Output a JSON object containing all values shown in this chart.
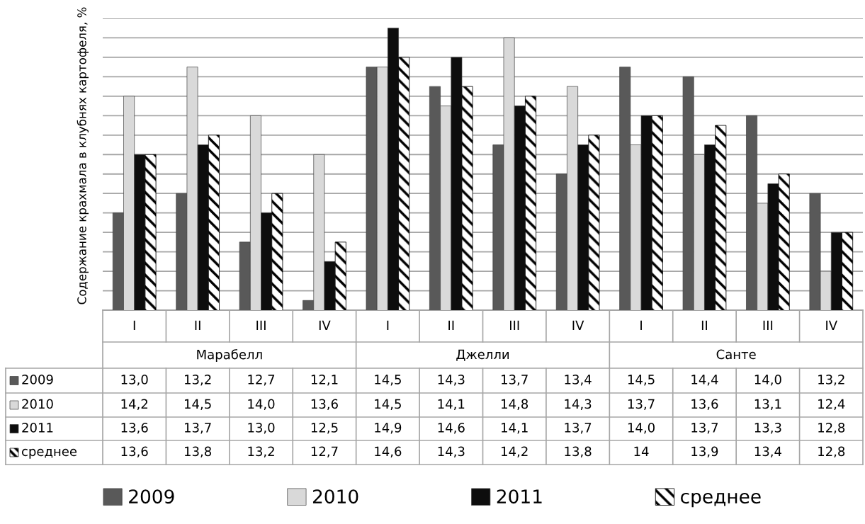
{
  "chart_data": {
    "type": "bar",
    "ylabel": "Содержание крахмала в клубнях картофеля, %",
    "categories": [
      "I",
      "II",
      "III",
      "IV",
      "I",
      "II",
      "III",
      "IV",
      "I",
      "II",
      "III",
      "IV"
    ],
    "annotations": [
      "Марабелл",
      "Джелли",
      "Санте"
    ],
    "series": [
      {
        "name": "2009",
        "color": "#595959",
        "values": [
          13.0,
          13.2,
          12.7,
          12.1,
          14.5,
          14.3,
          13.7,
          13.4,
          14.5,
          14.4,
          14.0,
          13.2
        ],
        "value_labels": [
          "13,0",
          "13,2",
          "12,7",
          "12,1",
          "14,5",
          "14,3",
          "13,7",
          "13,4",
          "14,5",
          "14,4",
          "14,0",
          "13,2"
        ]
      },
      {
        "name": "2010",
        "color": "#d9d9d9",
        "values": [
          14.2,
          14.5,
          14.0,
          13.6,
          14.5,
          14.1,
          14.8,
          14.3,
          13.7,
          13.6,
          13.1,
          12.4
        ],
        "value_labels": [
          "14,2",
          "14,5",
          "14,0",
          "13,6",
          "14,5",
          "14,1",
          "14,8",
          "14,3",
          "13,7",
          "13,6",
          "13,1",
          "12,4"
        ]
      },
      {
        "name": "2011",
        "color": "#0d0d0d",
        "values": [
          13.6,
          13.7,
          13.0,
          12.5,
          14.9,
          14.6,
          14.1,
          13.7,
          14.0,
          13.7,
          13.3,
          12.8
        ],
        "value_labels": [
          "13,6",
          "13,7",
          "13,0",
          "12,5",
          "14,9",
          "14,6",
          "14,1",
          "13,7",
          "14,0",
          "13,7",
          "13,3",
          "12,8"
        ]
      },
      {
        "name": "среднее",
        "color": "#000000",
        "values": [
          13.6,
          13.8,
          13.2,
          12.7,
          14.6,
          14.3,
          14.2,
          13.8,
          14.0,
          13.9,
          13.4,
          12.8
        ],
        "value_labels": [
          "13,6",
          "13,8",
          "13,2",
          "12,7",
          "14,6",
          "14,3",
          "14,2",
          "13,8",
          "14",
          "13,9",
          "13,4",
          "12,8"
        ]
      }
    ],
    "ylim": [
      12.0,
      15.0
    ],
    "yticks": [
      {
        "value": 12.0,
        "label": null
      },
      {
        "value": 12.2,
        "label": null
      },
      {
        "value": 12.4,
        "label": null
      },
      {
        "value": 12.6,
        "label": null
      },
      {
        "value": 12.8,
        "label": null
      },
      {
        "value": 13.0,
        "label": null
      },
      {
        "value": 13.2,
        "label": null
      },
      {
        "value": 13.4,
        "label": null
      },
      {
        "value": 13.6,
        "label": null
      },
      {
        "value": 13.8,
        "label": null
      },
      {
        "value": 14.0,
        "label": null
      },
      {
        "value": 14.2,
        "label": null
      },
      {
        "value": 14.4,
        "label": null
      },
      {
        "value": 14.6,
        "label": null
      },
      {
        "value": 14.8,
        "label": null
      },
      {
        "value": 15.0,
        "label": null
      }
    ],
    "grid": "y",
    "legend": "bottom"
  }
}
